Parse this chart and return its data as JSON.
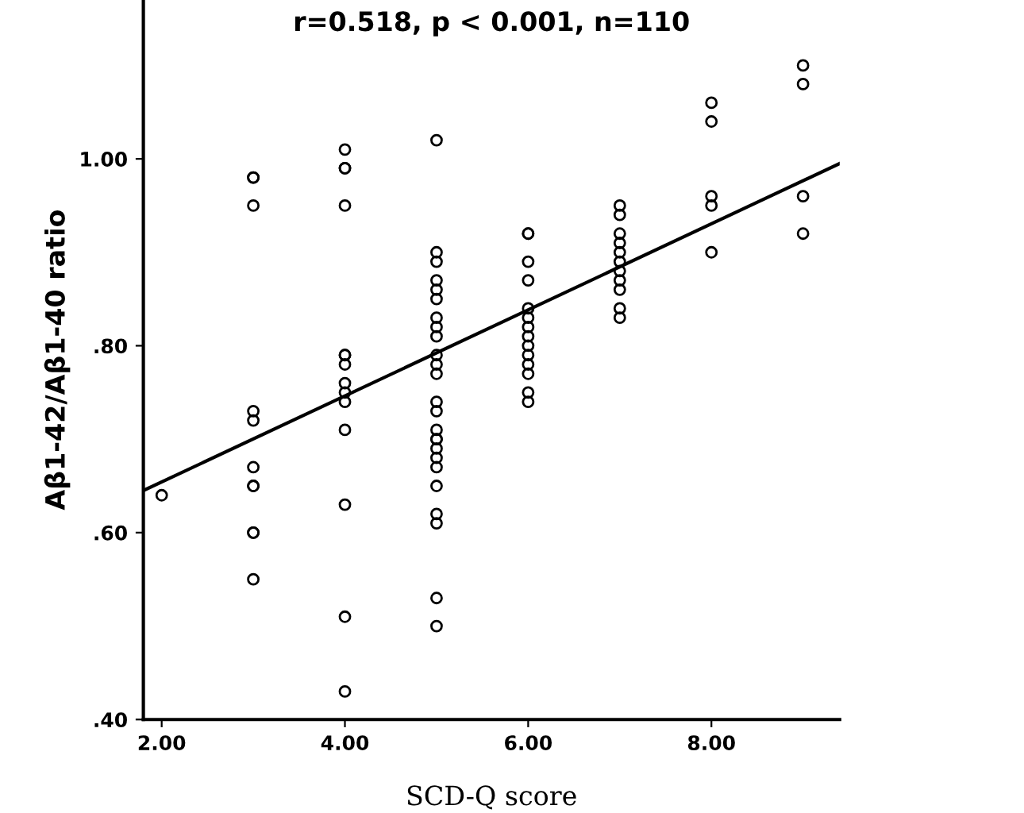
{
  "chart_data": {
    "type": "scatter",
    "title": "r=0.518, p < 0.001, n=110",
    "xlabel": "SCD-Q score",
    "ylabel": "Aβ1-42/Aβ1-40 ratio",
    "xlim": [
      1.8,
      9.4
    ],
    "ylim": [
      0.4,
      1.17
    ],
    "xticks": [
      {
        "value": 2,
        "label": "2.00"
      },
      {
        "value": 4,
        "label": "4.00"
      },
      {
        "value": 6,
        "label": "6.00"
      },
      {
        "value": 8,
        "label": "8.00"
      }
    ],
    "yticks": [
      {
        "value": 0.4,
        "label": ".40"
      },
      {
        "value": 0.6,
        "label": ".60"
      },
      {
        "value": 0.8,
        "label": ".80"
      },
      {
        "value": 1.0,
        "label": "1.00"
      }
    ],
    "grid": false,
    "legend": false,
    "marker": "circle",
    "series": [
      {
        "color": "#000000",
        "x": [
          2,
          3,
          3,
          3,
          3,
          3,
          3,
          3,
          3,
          3,
          3,
          3,
          4,
          4,
          4,
          4,
          4,
          4,
          4,
          4,
          4,
          4,
          4,
          4,
          4,
          4,
          5,
          5,
          5,
          5,
          5,
          5,
          5,
          5,
          5,
          5,
          5,
          5,
          5,
          5,
          5,
          5,
          5,
          5,
          5,
          5,
          5,
          5,
          5,
          5,
          5,
          6,
          6,
          6,
          6,
          6,
          6,
          6,
          6,
          6,
          6,
          6,
          6,
          6,
          6,
          7,
          7,
          7,
          7,
          7,
          7,
          7,
          7,
          7,
          7,
          7,
          8,
          8,
          8,
          8,
          8,
          9,
          9,
          9,
          9
        ],
        "values": [
          0.64,
          0.98,
          0.98,
          0.95,
          0.73,
          0.72,
          0.67,
          0.65,
          0.65,
          0.6,
          0.6,
          0.55,
          1.01,
          0.99,
          0.99,
          0.95,
          0.79,
          0.79,
          0.78,
          0.76,
          0.75,
          0.74,
          0.71,
          0.63,
          0.51,
          0.43,
          1.02,
          0.9,
          0.89,
          0.87,
          0.86,
          0.85,
          0.83,
          0.82,
          0.81,
          0.79,
          0.78,
          0.77,
          0.74,
          0.73,
          0.71,
          0.7,
          0.7,
          0.69,
          0.68,
          0.67,
          0.65,
          0.62,
          0.61,
          0.53,
          0.5,
          0.92,
          0.92,
          0.89,
          0.87,
          0.84,
          0.83,
          0.82,
          0.81,
          0.8,
          0.79,
          0.78,
          0.77,
          0.75,
          0.74,
          0.95,
          0.94,
          0.92,
          0.91,
          0.9,
          0.89,
          0.88,
          0.87,
          0.86,
          0.84,
          0.83,
          1.06,
          1.04,
          0.96,
          0.95,
          0.9,
          1.1,
          1.08,
          0.96,
          0.92
        ]
      },
      {
        "type": "line",
        "color": "#000000",
        "x": [
          1.8,
          9.4
        ],
        "values": [
          0.645,
          0.995
        ],
        "marker": "none",
        "line_style": "solid"
      }
    ]
  }
}
